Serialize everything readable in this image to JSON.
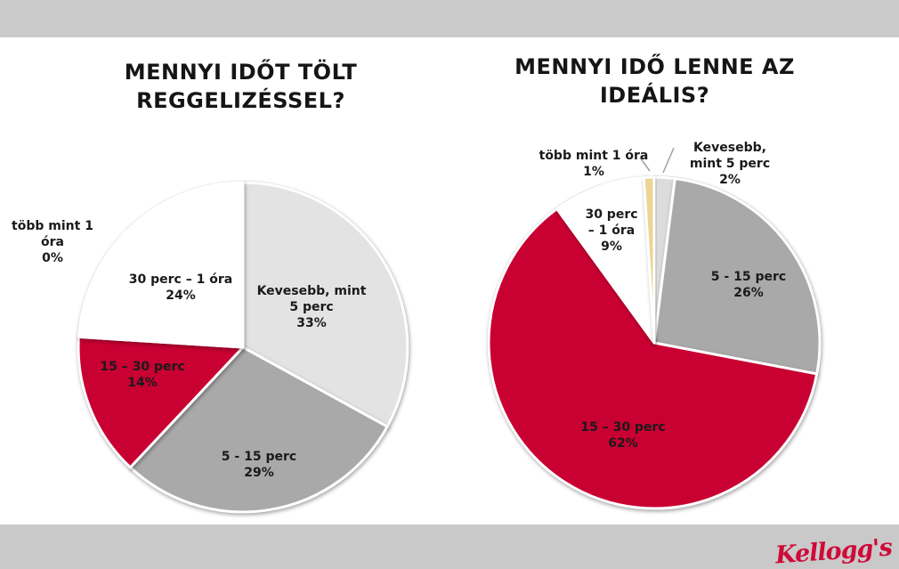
{
  "page": {
    "top_band_color": "#cbcbcb",
    "bottom_band_color": "#c9c9c9",
    "background_color": "#ffffff"
  },
  "brand": {
    "logo_text": "Kellogg's",
    "logo_color": "#ce0a38"
  },
  "chart_data": [
    {
      "type": "pie",
      "title": "MENNYI IDŐT TÖLT REGGELIZÉSSEL?",
      "start_angle_deg": 0,
      "direction": "clockwise",
      "unit": "percent",
      "slices": [
        {
          "label": "Kevesebb, mint 5 perc",
          "pct": "33%",
          "value": 33,
          "color": "#e3e3e3"
        },
        {
          "label": "5 - 15 perc",
          "pct": "29%",
          "value": 29,
          "color": "#a9a9a9"
        },
        {
          "label": "15 – 30 perc",
          "pct": "14%",
          "value": 14,
          "color": "#c90130"
        },
        {
          "label": "30 perc – 1 óra",
          "pct": "24%",
          "value": 24,
          "color": "#ffffff"
        },
        {
          "label": "több mint 1 óra",
          "pct": "0%",
          "value": 0,
          "color": "#ecd493"
        }
      ]
    },
    {
      "type": "pie",
      "title": "MENNYI IDŐ LENNE AZ IDEÁLIS?",
      "start_angle_deg": 0,
      "direction": "clockwise",
      "unit": "percent",
      "slices": [
        {
          "label": "Kevesebb, mint 5 perc",
          "pct": "2%",
          "value": 2,
          "color": "#dcdcdc"
        },
        {
          "label": "5 - 15 perc",
          "pct": "26%",
          "value": 26,
          "color": "#a9a9a9"
        },
        {
          "label": "15 – 30 perc",
          "pct": "62%",
          "value": 62,
          "color": "#c90130"
        },
        {
          "label": "30 perc – 1 óra",
          "pct": "9%",
          "value": 9,
          "color": "#ffffff"
        },
        {
          "label": "több mint 1 óra",
          "pct": "1%",
          "value": 1,
          "color": "#ecd493"
        }
      ]
    }
  ]
}
